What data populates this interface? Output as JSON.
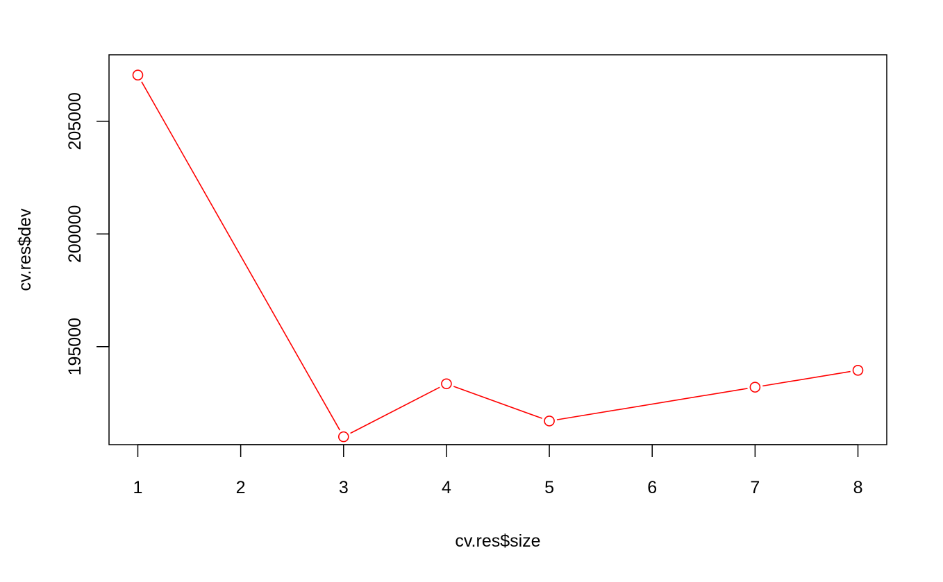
{
  "chart_data": {
    "type": "line",
    "title": "",
    "xlabel": "cv.res$size",
    "ylabel": "cv.res$dev",
    "x": [
      1,
      3,
      4,
      5,
      7,
      8
    ],
    "y": [
      207050,
      191000,
      193350,
      191700,
      193200,
      193950
    ],
    "xticks": [
      1,
      2,
      3,
      4,
      5,
      6,
      7,
      8
    ],
    "yticks": [
      195000,
      200000,
      205000
    ],
    "xlim": [
      0.72,
      8.28
    ],
    "ylim": [
      190650,
      207950
    ],
    "grid": false,
    "series": [
      {
        "color": "#ff0000",
        "marker": "open-circle"
      }
    ]
  }
}
